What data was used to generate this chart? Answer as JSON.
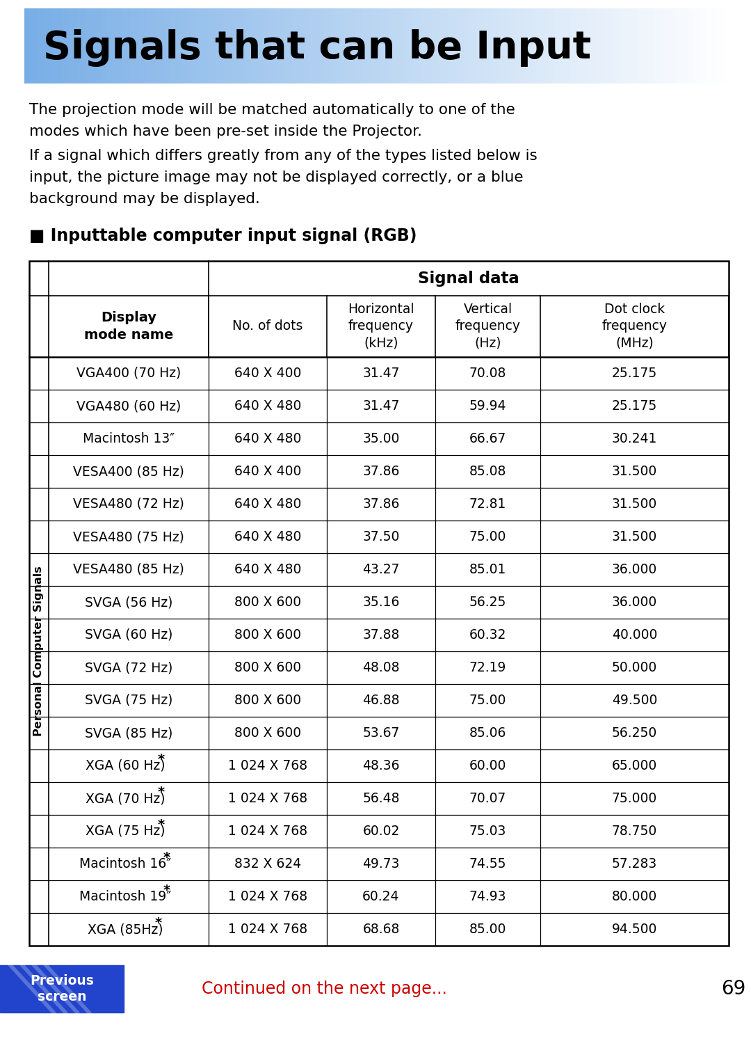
{
  "title": "Signals that can be Input",
  "body_bg": "#ffffff",
  "para1_lines": [
    "The projection mode will be matched automatically to one of the",
    "modes which have been pre-set inside the Projector."
  ],
  "para2_lines": [
    "If a signal which differs greatly from any of the types listed below is",
    "input, the picture image may not be displayed correctly, or a blue",
    "background may be displayed."
  ],
  "section_title": "■ Inputtable computer input signal (RGB)",
  "row_group_label": "Personal Computer Signals",
  "rows": [
    [
      "VGA400 (70 Hz)",
      "640 X 400",
      "31.47",
      "70.08",
      "25.175"
    ],
    [
      "VGA480 (60 Hz)",
      "640 X 480",
      "31.47",
      "59.94",
      "25.175"
    ],
    [
      "Macintosh 13″",
      "640 X 480",
      "35.00",
      "66.67",
      "30.241"
    ],
    [
      "VESA400 (85 Hz)",
      "640 X 400",
      "37.86",
      "85.08",
      "31.500"
    ],
    [
      "VESA480 (72 Hz)",
      "640 X 480",
      "37.86",
      "72.81",
      "31.500"
    ],
    [
      "VESA480 (75 Hz)",
      "640 X 480",
      "37.50",
      "75.00",
      "31.500"
    ],
    [
      "VESA480 (85 Hz)",
      "640 X 480",
      "43.27",
      "85.01",
      "36.000"
    ],
    [
      "SVGA (56 Hz)",
      "800 X 600",
      "35.16",
      "56.25",
      "36.000"
    ],
    [
      "SVGA (60 Hz)",
      "800 X 600",
      "37.88",
      "60.32",
      "40.000"
    ],
    [
      "SVGA (72 Hz)",
      "800 X 600",
      "48.08",
      "72.19",
      "50.000"
    ],
    [
      "SVGA (75 Hz)",
      "800 X 600",
      "46.88",
      "75.00",
      "49.500"
    ],
    [
      "SVGA (85 Hz)",
      "800 X 600",
      "53.67",
      "85.06",
      "56.250"
    ],
    [
      "XGA (60 Hz)*",
      "1 024 X 768",
      "48.36",
      "60.00",
      "65.000"
    ],
    [
      "XGA (70 Hz)*",
      "1 024 X 768",
      "56.48",
      "70.07",
      "75.000"
    ],
    [
      "XGA (75 Hz)*",
      "1 024 X 768",
      "60.02",
      "75.03",
      "78.750"
    ],
    [
      "Macintosh 16″*",
      "832 X 624",
      "49.73",
      "74.55",
      "57.283"
    ],
    [
      "Macintosh 19″*",
      "1 024 X 768",
      "60.24",
      "74.93",
      "80.000"
    ],
    [
      "XGA (85Hz)*",
      "1 024 X 768",
      "68.68",
      "85.00",
      "94.500"
    ]
  ],
  "asterisk_rows": [
    12,
    13,
    14,
    15,
    16,
    17
  ],
  "footer_continued": "Continued on the next page...",
  "footer_page": "69",
  "footer_btn_bg": "#2244cc",
  "footer_btn_text": "Previous\nscreen",
  "footer_continued_color": "#cc0000"
}
